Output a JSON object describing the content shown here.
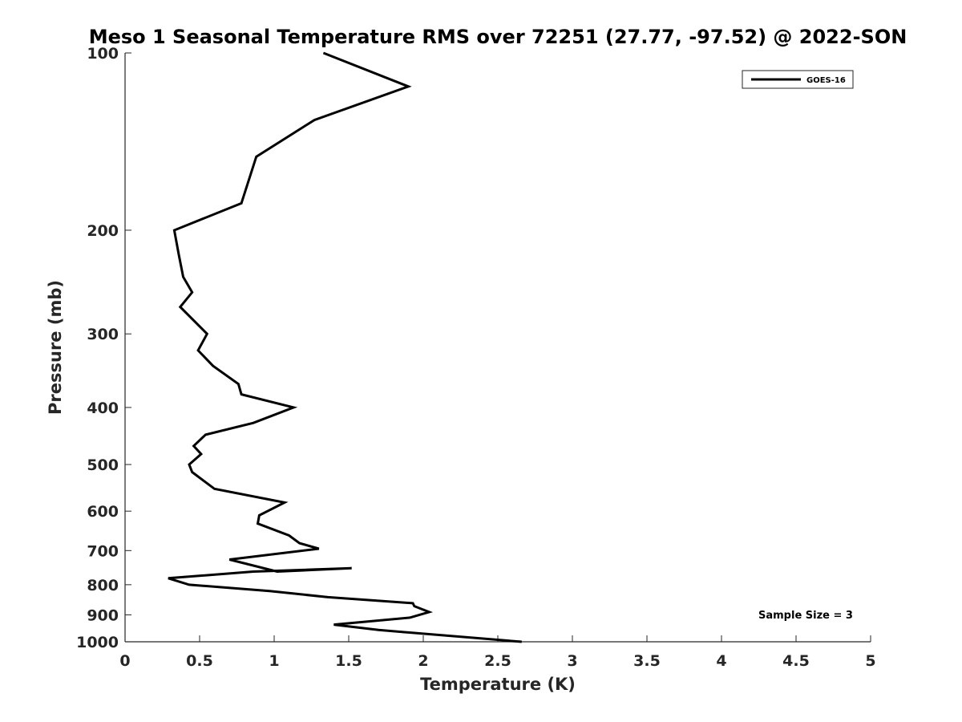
{
  "chart_data": {
    "type": "line",
    "title": "Meso 1 Seasonal Temperature RMS over 72251 (27.77, -97.52) @ 2022-SON",
    "xlabel": "Temperature (K)",
    "ylabel": "Pressure (mb)",
    "xlim": [
      0,
      5
    ],
    "ylim": [
      1000,
      100
    ],
    "y_scale": "log",
    "y_reversed": true,
    "grid": false,
    "legend_position": "top-right",
    "x_ticks": [
      "0",
      "0.5",
      "1",
      "1.5",
      "2",
      "2.5",
      "3",
      "3.5",
      "4",
      "4.5",
      "5"
    ],
    "y_ticks": [
      "100",
      "200",
      "300",
      "400",
      "500",
      "600",
      "700",
      "800",
      "900",
      "1000"
    ],
    "annotation": "Sample Size = 3",
    "series": [
      {
        "name": "GOES-16",
        "color": "#000000",
        "x": [
          1.33,
          1.9,
          1.27,
          0.88,
          0.78,
          0.33,
          0.36,
          0.39,
          0.45,
          0.37,
          0.55,
          0.49,
          0.59,
          0.76,
          0.78,
          1.13,
          0.86,
          0.54,
          0.46,
          0.51,
          0.43,
          0.45,
          0.6,
          1.07,
          0.9,
          0.89,
          1.1,
          1.17,
          1.3,
          0.7,
          1.02,
          1.52,
          0.86,
          0.29,
          0.43,
          0.97,
          1.36,
          1.93,
          1.94,
          2.04,
          1.91,
          1.4,
          1.7,
          2.66
        ],
        "y": [
          100,
          114,
          130,
          150,
          180,
          200,
          220,
          240,
          255,
          270,
          300,
          320,
          340,
          365,
          380,
          400,
          425,
          445,
          465,
          480,
          500,
          515,
          550,
          580,
          610,
          630,
          660,
          680,
          695,
          725,
          760,
          750,
          760,
          780,
          800,
          820,
          840,
          860,
          870,
          890,
          910,
          935,
          955,
          1000
        ]
      }
    ]
  }
}
